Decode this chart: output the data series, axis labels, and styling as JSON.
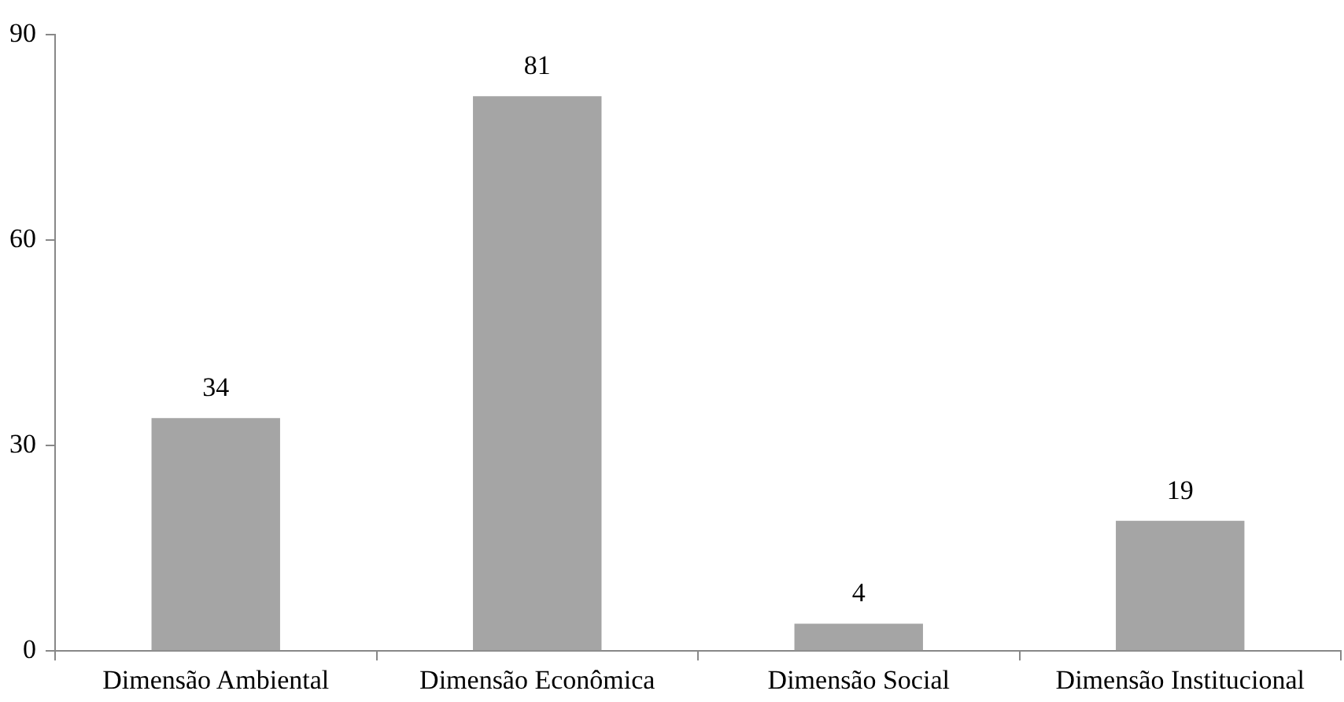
{
  "chart_data": {
    "type": "bar",
    "categories": [
      "Dimensão Ambiental",
      "Dimensão Econômica",
      "Dimensão Social",
      "Dimensão Institucional"
    ],
    "values": [
      34,
      81,
      4,
      19
    ],
    "color": "#a5a5a5",
    "ylim": [
      0,
      90
    ],
    "yticks": [
      0,
      30,
      60,
      90
    ],
    "grid": false,
    "legend": false,
    "data_labels": true
  }
}
